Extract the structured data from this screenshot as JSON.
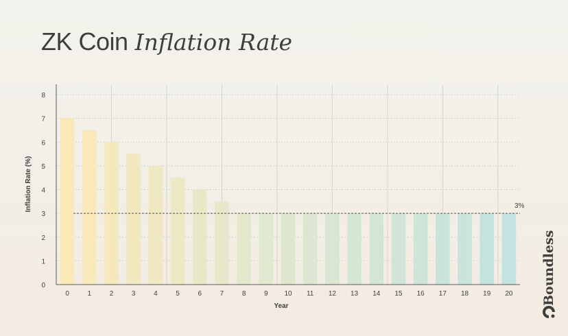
{
  "title": {
    "main": "ZK Coin",
    "accent": "Inflation Rate"
  },
  "brand": {
    "name": "Boundless"
  },
  "chart_data": {
    "type": "bar",
    "title": "ZK Coin Inflation Rate",
    "xlabel": "Year",
    "ylabel": "Inflation Rate (%)",
    "ylim": [
      0,
      8
    ],
    "yticks": [
      0,
      1,
      2,
      3,
      4,
      5,
      6,
      7,
      8
    ],
    "categories": [
      "0",
      "1",
      "2",
      "3",
      "4",
      "5",
      "6",
      "7",
      "8",
      "9",
      "10",
      "11",
      "12",
      "13",
      "14",
      "15",
      "16",
      "17",
      "18",
      "19",
      "20"
    ],
    "values": [
      7,
      6.5,
      6,
      5.5,
      5,
      4.5,
      4,
      3.5,
      3,
      3,
      3,
      3,
      3,
      3,
      3,
      3,
      3,
      3,
      3,
      3,
      3
    ],
    "grid": true,
    "reference_line": {
      "value": 3,
      "label": "3%"
    },
    "colors": {
      "start": "#fbe8b7",
      "mid": "#e3e8cb",
      "end": "#c2e3df",
      "axis": "#5a5a5a",
      "grid": "#d4d4ce",
      "text": "#3e3e3e"
    }
  }
}
